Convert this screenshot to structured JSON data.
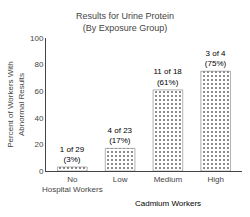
{
  "chart_data": {
    "type": "bar",
    "title": "Results for Urine Protein\n(By Exposure Group)",
    "xlabel": "Cadmium Workers",
    "ylabel": "Percent of Workers With\nAbnormal Results",
    "categories": [
      "No\nHospital Workers",
      "Low",
      "Medium",
      "High"
    ],
    "values": [
      3,
      17,
      61,
      75
    ],
    "value_labels": [
      "1 of 29\n(3%)",
      "4 of 23\n(17%)",
      "11 of 18\n(61%)",
      "3 of 4\n(75%)"
    ],
    "data_labels": true,
    "color": "#cccccc",
    "ylim": [
      0,
      100
    ],
    "yticks": [
      0,
      20,
      40,
      60,
      80,
      100
    ],
    "grid": false
  }
}
